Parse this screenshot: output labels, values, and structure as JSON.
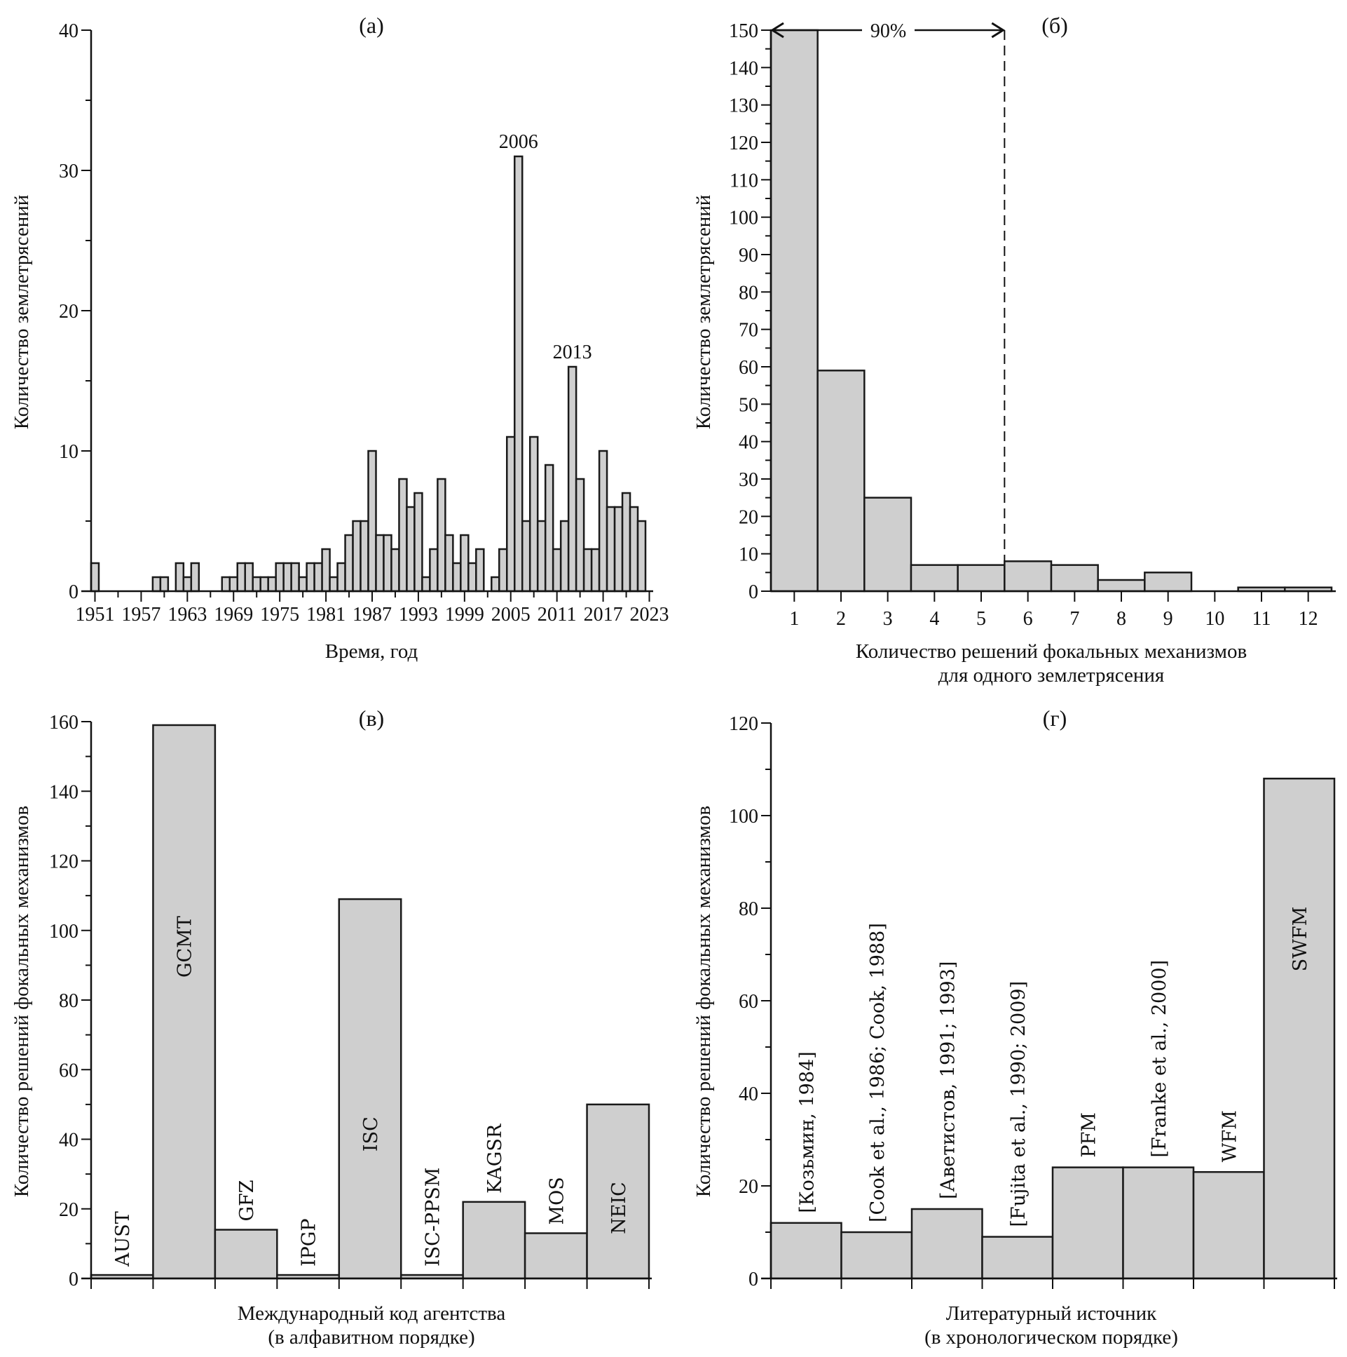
{
  "chart_data": [
    {
      "id": "a",
      "type": "bar",
      "panel_label": "(а)",
      "title": "",
      "xlabel": "Время, год",
      "ylabel": "Количество землетрясений",
      "ylim": [
        0,
        40
      ],
      "yticks": [
        0,
        10,
        20,
        30,
        40
      ],
      "xlim": [
        1950.5,
        2023.5
      ],
      "xticks": [
        1951,
        1957,
        1963,
        1969,
        1975,
        1981,
        1987,
        1993,
        1999,
        2005,
        2011,
        2017,
        2023
      ],
      "x": [
        1951,
        1952,
        1953,
        1954,
        1955,
        1956,
        1957,
        1958,
        1959,
        1960,
        1961,
        1962,
        1963,
        1964,
        1965,
        1966,
        1967,
        1968,
        1969,
        1970,
        1971,
        1972,
        1973,
        1974,
        1975,
        1976,
        1977,
        1978,
        1979,
        1980,
        1981,
        1982,
        1983,
        1984,
        1985,
        1986,
        1987,
        1988,
        1989,
        1990,
        1991,
        1992,
        1993,
        1994,
        1995,
        1996,
        1997,
        1998,
        1999,
        2000,
        2001,
        2002,
        2003,
        2004,
        2005,
        2006,
        2007,
        2008,
        2009,
        2010,
        2011,
        2012,
        2013,
        2014,
        2015,
        2016,
        2017,
        2018,
        2019,
        2020,
        2021,
        2022
      ],
      "values": [
        2,
        0,
        0,
        0,
        0,
        0,
        0,
        0,
        1,
        1,
        0,
        2,
        1,
        2,
        0,
        0,
        0,
        1,
        1,
        2,
        2,
        1,
        1,
        1,
        2,
        2,
        2,
        1,
        2,
        2,
        3,
        1,
        2,
        4,
        5,
        5,
        10,
        4,
        4,
        3,
        8,
        6,
        7,
        1,
        3,
        8,
        4,
        2,
        4,
        2,
        3,
        0,
        1,
        3,
        11,
        31,
        5,
        11,
        5,
        9,
        3,
        5,
        16,
        8,
        3,
        3,
        10,
        6,
        6,
        7,
        6,
        5
      ],
      "annotations": [
        {
          "text": "2006",
          "x": 2006,
          "y": 31
        },
        {
          "text": "2013",
          "x": 2013,
          "y": 16
        }
      ]
    },
    {
      "id": "b",
      "type": "bar",
      "panel_label": "(б)",
      "title": "",
      "xlabel": "Количество решений фокальных механизмов",
      "xlabel2": "для одного землетрясения",
      "ylabel": "Количество землетрясений",
      "ylim": [
        0,
        150
      ],
      "yticks": [
        0,
        10,
        20,
        30,
        40,
        50,
        60,
        70,
        80,
        90,
        100,
        110,
        120,
        130,
        140,
        150
      ],
      "categories": [
        "1",
        "2",
        "3",
        "4",
        "5",
        "6",
        "7",
        "8",
        "9",
        "10",
        "11",
        "12"
      ],
      "values": [
        150,
        59,
        25,
        7,
        7,
        8,
        7,
        3,
        5,
        0,
        1,
        1
      ],
      "note": "first bar exceeds axis maximum (clipped at 150)",
      "annotations": [
        {
          "text": "90%",
          "type": "double-arrow",
          "x_from": 0.5,
          "x_to": 5.5,
          "y": 150
        },
        {
          "type": "dashed-line",
          "x": 5.5
        }
      ]
    },
    {
      "id": "v",
      "type": "bar",
      "panel_label": "(в)",
      "title": "",
      "xlabel": "Международный код агентства",
      "xlabel2": "(в алфавитном порядке)",
      "ylabel": "Количество решений фокальных механизмов",
      "ylim": [
        0,
        160
      ],
      "yticks": [
        0,
        20,
        40,
        60,
        80,
        100,
        120,
        140,
        160
      ],
      "categories": [
        "AUST",
        "GCMT",
        "GFZ",
        "IPGP",
        "ISC",
        "ISC-PPSM",
        "KAGSR",
        "MOS",
        "NEIC"
      ],
      "values": [
        1,
        159,
        14,
        1,
        109,
        1,
        22,
        13,
        50
      ]
    },
    {
      "id": "g",
      "type": "bar",
      "panel_label": "(г)",
      "title": "",
      "xlabel": "Литературный источник",
      "xlabel2": "(в хронологическом порядке)",
      "ylabel": "Количество решений фокальных механизмов",
      "ylim": [
        0,
        120
      ],
      "yticks": [
        0,
        20,
        40,
        60,
        80,
        100,
        120
      ],
      "categories": [
        "[Козьмин, 1984]",
        "[Cook et al., 1986; Cook, 1988]",
        "[Аветистов, 1991; 1993]",
        "[Fujita et al., 1990; 2009]",
        "PFM",
        "[Franke et al., 2000]",
        "WFM",
        "SWFM"
      ],
      "values": [
        12,
        10,
        15,
        9,
        24,
        24,
        23,
        108
      ]
    }
  ]
}
